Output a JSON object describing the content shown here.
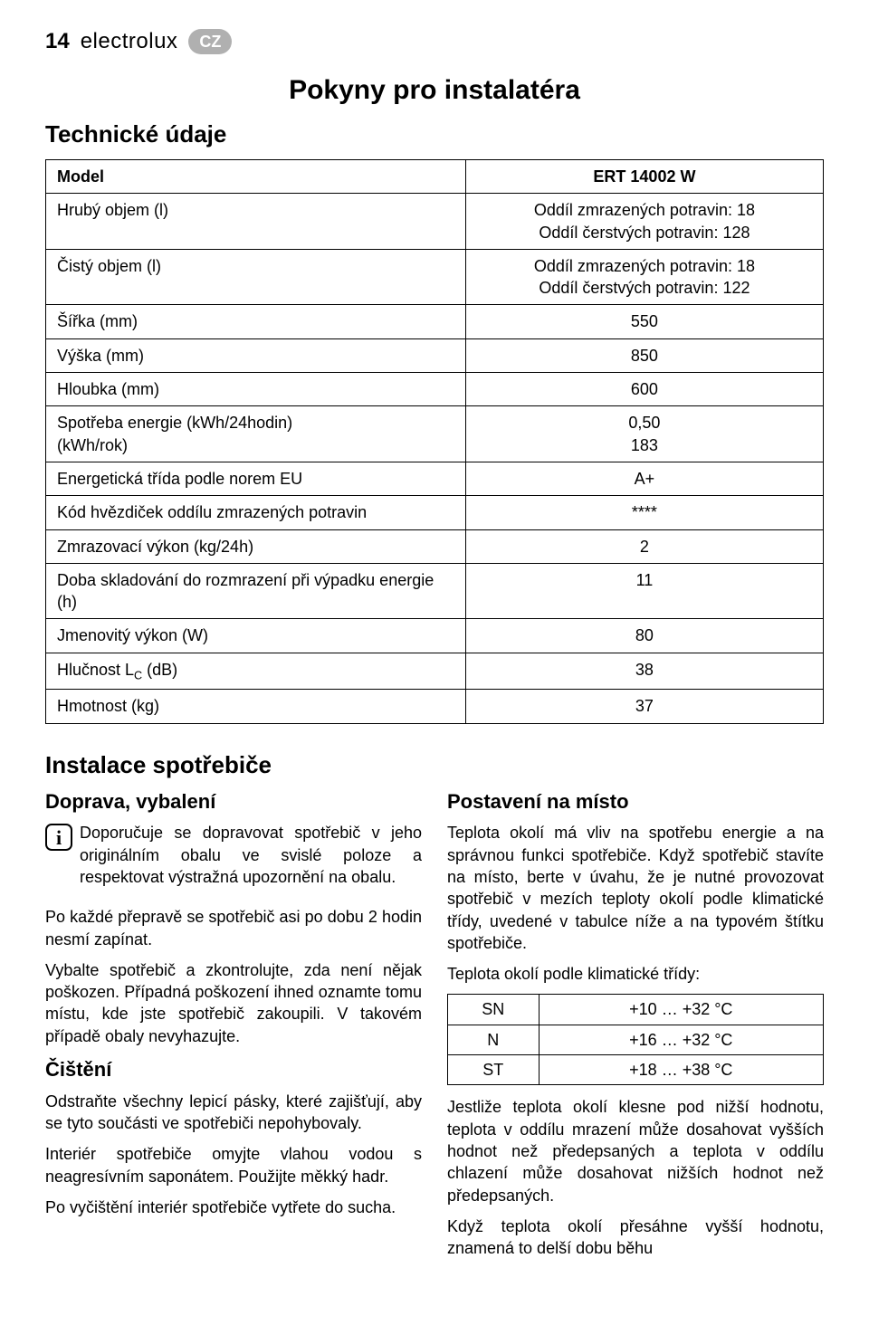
{
  "header": {
    "pagenum": "14",
    "brand": "electrolux",
    "lang": "CZ"
  },
  "main_title": "Pokyny pro instalatéra",
  "subtitle": "Technické údaje",
  "spec_table": {
    "rows": [
      {
        "label": "Model",
        "value": "ERT 14002 W",
        "bold": true
      },
      {
        "label": "Hrubý objem (l)",
        "value": "Oddíl zmrazených potravin: 18\nOddíl čerstvých potravin: 128"
      },
      {
        "label": "Čistý objem (l)",
        "value": "Oddíl zmrazených potravin: 18\nOddíl čerstvých potravin: 122"
      },
      {
        "label": "Šířka (mm)",
        "value": "550"
      },
      {
        "label": "Výška (mm)",
        "value": "850"
      },
      {
        "label": "Hloubka (mm)",
        "value": "600"
      },
      {
        "label": "Spotřeba energie    (kWh/24hodin)\n                                (kWh/rok)",
        "value": "0,50\n183"
      },
      {
        "label": "Energetická třída podle norem EU",
        "value": "A+"
      },
      {
        "label": "Kód hvězdiček oddílu zmrazených potravin",
        "value": "****"
      },
      {
        "label": "Zmrazovací výkon (kg/24h)",
        "value": "2"
      },
      {
        "label": "Doba skladování do rozmrazení při výpadku energie (h)",
        "value": "11"
      },
      {
        "label": "Jmenovitý výkon (W)",
        "value": "80"
      },
      {
        "label": "Hlučnost L_C (dB)",
        "label_html": "Hlučnost L<sub>C</sub> (dB)",
        "value": "38"
      },
      {
        "label": "Hmotnost (kg)",
        "value": "37"
      }
    ]
  },
  "section_title": "Instalace spotřebiče",
  "left_col": {
    "h3_1": "Doprava, vybalení",
    "info_para": "Doporučuje se dopravovat spotřebič v jeho originálním obalu ve svislé poloze a respektovat výstražná upozornění na obalu.",
    "p2": "Po každé přepravě se spotřebič asi po dobu 2 hodin nesmí zapínat.",
    "p3": "Vybalte spotřebič a zkontrolujte, zda není nějak poškozen. Případná poškození ihned oznamte tomu místu, kde jste spotřebič zakoupili. V takovém případě obaly nevyhazujte.",
    "h3_2": "Čištění",
    "p4": "Odstraňte všechny lepicí pásky, které zajišťují, aby se tyto součásti ve spotřebiči nepohybovaly.",
    "p5": "Interiér spotřebiče omyjte vlahou vodou s neagresívním saponátem. Použijte měkký hadr.",
    "p6": "Po vyčištění interiér spotřebiče vytřete do sucha."
  },
  "right_col": {
    "h3_1": "Postavení na místo",
    "p1": "Teplota okolí má vliv na spotřebu energie a na správnou funkci spotřebiče. Když spotřebič stavíte na místo, berte v úvahu, že je nutné provozovat spotřebič v mezích teploty okolí podle klimatické třídy, uvedené v tabulce níže a na typovém štítku spotřebiče.",
    "p2": "Teplota okolí podle klimatické třídy:",
    "climate_table": {
      "rows": [
        {
          "c1": "SN",
          "c2": "+10 … +32 °C"
        },
        {
          "c1": "N",
          "c2": "+16 … +32 °C"
        },
        {
          "c1": "ST",
          "c2": "+18 … +38 °C"
        }
      ]
    },
    "p3": "Jestliže teplota okolí klesne pod nižší hodnotu, teplota v oddílu mrazení může dosahovat vyšších hodnot než předepsaných a teplota v oddílu chlazení může dosahovat nižších hodnot než předepsaných.",
    "p4": "Když teplota okolí přesáhne vyšší hodnotu, znamená to delší dobu běhu"
  }
}
